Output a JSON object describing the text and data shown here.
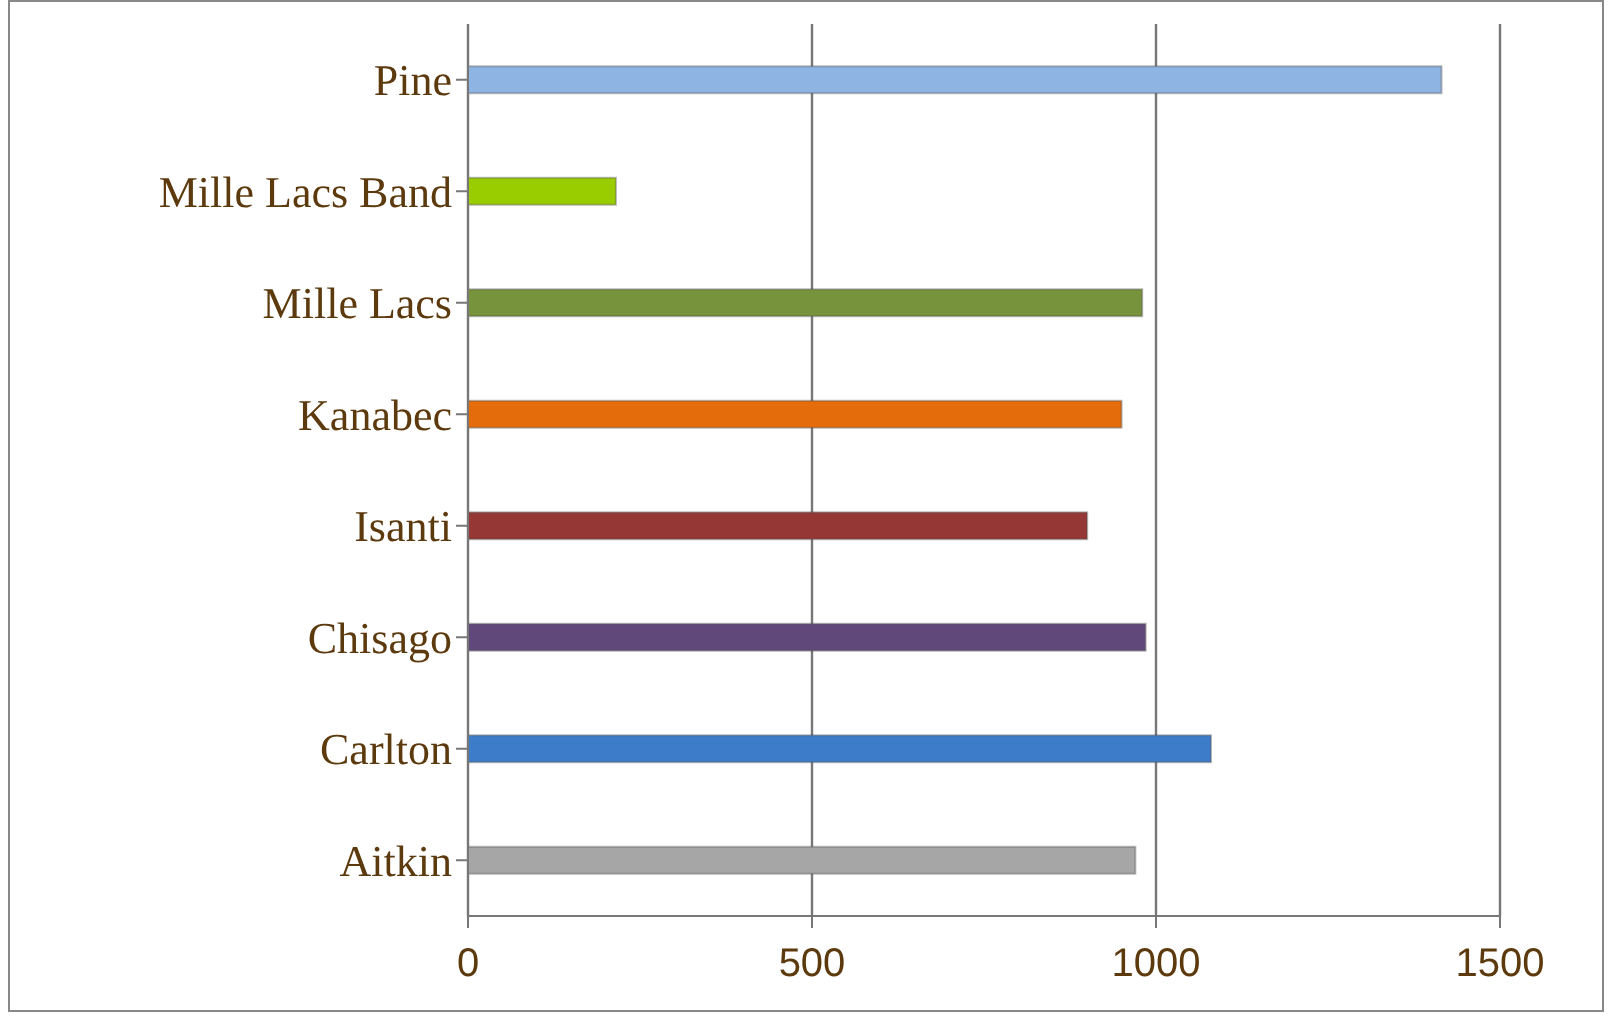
{
  "chart_data": {
    "type": "bar",
    "orientation": "horizontal",
    "categories": [
      "Pine",
      "Mille Lacs Band",
      "Mille Lacs",
      "Kanabec",
      "Isanti",
      "Chisago",
      "Carlton",
      "Aitkin"
    ],
    "values": [
      1415,
      215,
      980,
      950,
      900,
      985,
      1080,
      970
    ],
    "colors": [
      "#8db4e2",
      "#9acd00",
      "#77933c",
      "#e46c0a",
      "#953735",
      "#60497a",
      "#3d7cc9",
      "#a6a6a6"
    ],
    "xlim": [
      0,
      1500
    ],
    "xticks": [
      0,
      500,
      1000,
      1500
    ],
    "grid": "x"
  }
}
